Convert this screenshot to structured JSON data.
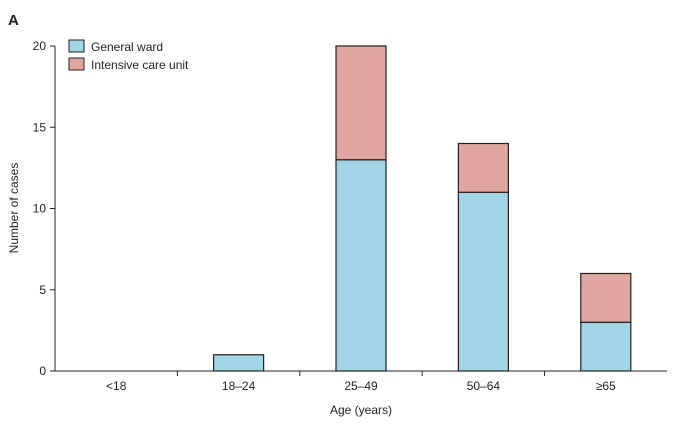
{
  "chart_data": {
    "type": "bar",
    "stacked": true,
    "panel_label": "A",
    "categories": [
      "<18",
      "18–24",
      "25–49",
      "50–64",
      "≥65"
    ],
    "series": [
      {
        "name": "General ward",
        "values": [
          0,
          1,
          13,
          11,
          3
        ],
        "color": "#a0d6e5"
      },
      {
        "name": "Intensive care unit",
        "values": [
          0,
          0,
          7,
          3,
          3
        ],
        "color": "#e0a7a2"
      }
    ],
    "xlabel": "Age (years)",
    "ylabel": "Number of cases",
    "ylim": [
      0,
      20
    ],
    "yticks": [
      0,
      5,
      10,
      15,
      20
    ],
    "grid": false,
    "legend_position": "top-left"
  }
}
